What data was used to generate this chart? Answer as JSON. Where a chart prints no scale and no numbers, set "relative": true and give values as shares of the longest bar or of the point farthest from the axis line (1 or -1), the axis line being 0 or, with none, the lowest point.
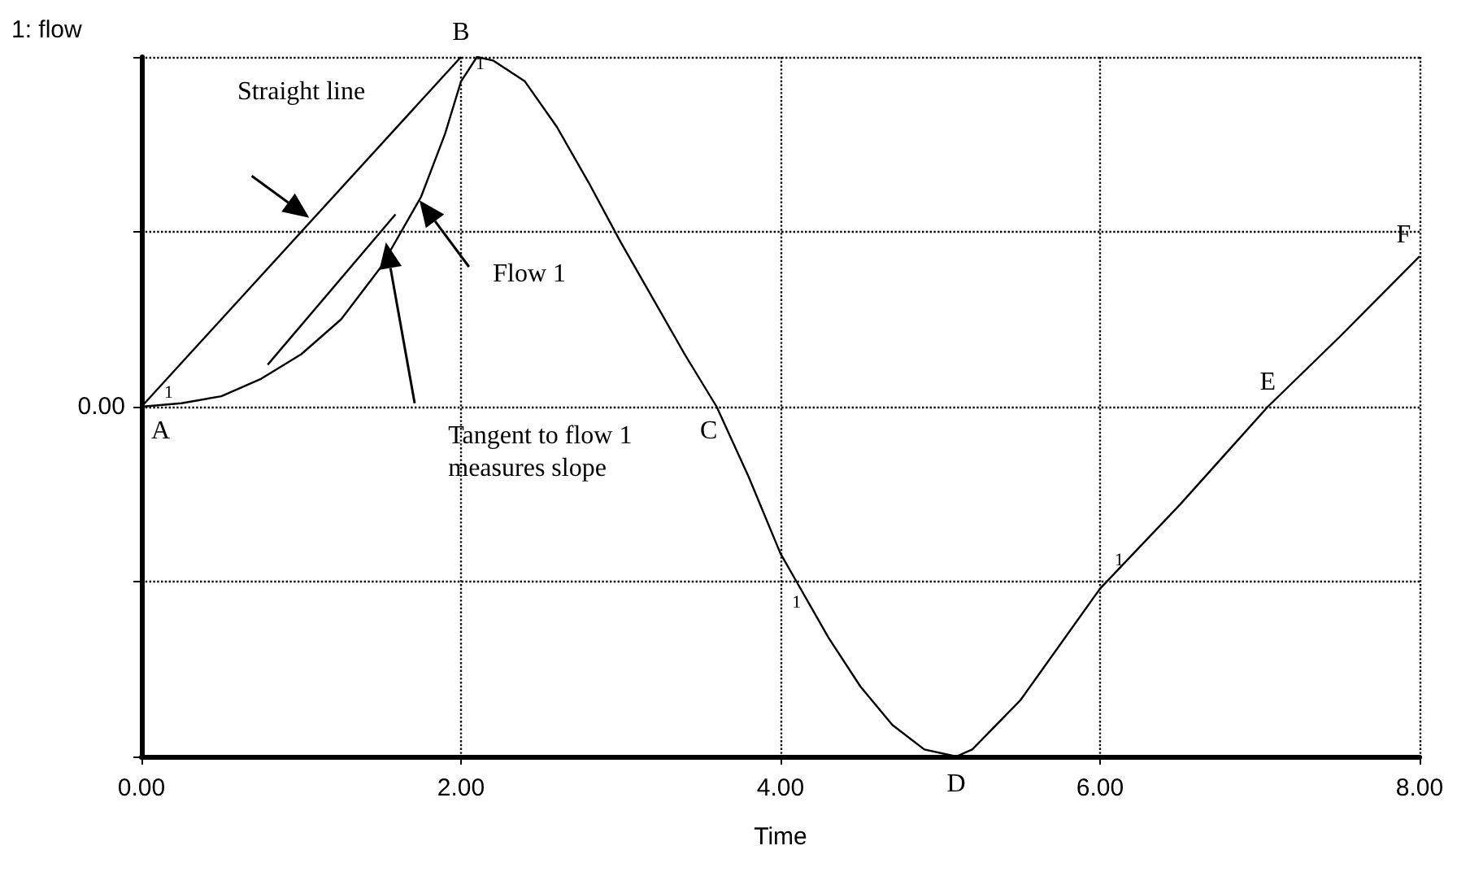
{
  "chart_data": {
    "type": "line",
    "relative": true,
    "title": "1: flow",
    "xlabel": "Time",
    "xlim": [
      0,
      8
    ],
    "xticks": [
      {
        "value": 0,
        "label": "0.00"
      },
      {
        "value": 2,
        "label": "2.00"
      },
      {
        "value": 4,
        "label": "4.00"
      },
      {
        "value": 6,
        "label": "6.00"
      },
      {
        "value": 8,
        "label": "8.00"
      }
    ],
    "grid": true,
    "marker": "none",
    "line_style": "solid",
    "series": [
      {
        "color": "#000000",
        "x": [
          0,
          0.25,
          0.5,
          0.75,
          1.0,
          1.25,
          1.5,
          1.75,
          1.9,
          2.0,
          2.1,
          2.2,
          2.4,
          2.6,
          2.8,
          3.0,
          3.2,
          3.4,
          3.6,
          3.8,
          4.0,
          4.1,
          4.3,
          4.5,
          4.7,
          4.9,
          5.1,
          5.2,
          5.5,
          6.0,
          6.5,
          7.05,
          7.5,
          8.0
        ],
        "values": [
          0,
          0.01,
          0.03,
          0.08,
          0.15,
          0.25,
          0.4,
          0.6,
          0.78,
          0.93,
          1.0,
          0.99,
          0.93,
          0.8,
          0.64,
          0.47,
          0.31,
          0.15,
          0,
          -0.2,
          -0.42,
          -0.5,
          -0.66,
          -0.8,
          -0.91,
          -0.98,
          -1.0,
          -0.98,
          -0.84,
          -0.52,
          -0.28,
          0,
          0.2,
          0.43
        ]
      },
      {
        "color": "#000000",
        "x": [
          0,
          2
        ],
        "values": [
          0,
          1
        ]
      },
      {
        "color": "#000000",
        "x": [
          0.79,
          1.59
        ],
        "values": [
          0.12,
          0.55
        ]
      }
    ],
    "annotations": [
      "0.00",
      "A",
      "B",
      "C",
      "D",
      "E",
      "F",
      "1",
      "1",
      "1",
      "1",
      "Straight line",
      "Flow 1",
      "Tangent to flow 1\nmeasures slope"
    ]
  }
}
